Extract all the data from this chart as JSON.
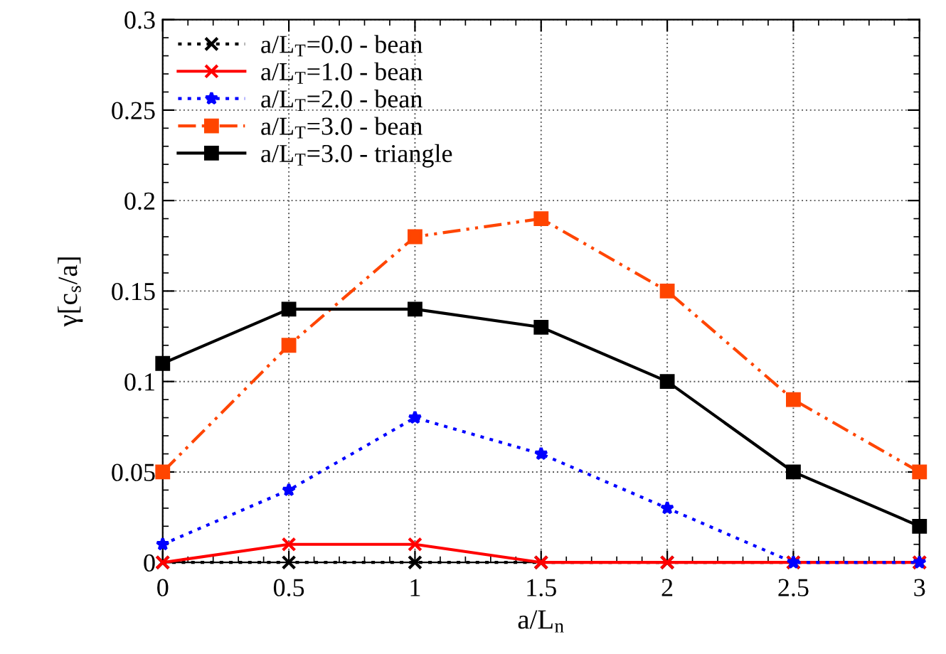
{
  "chart_data": {
    "type": "line",
    "xlabel": "a/L$_{n}$",
    "ylabel": "γ[c$_{s}$/a]",
    "x": [
      0,
      0.5,
      1,
      1.5,
      2,
      2.5,
      3
    ],
    "series": [
      {
        "name": "a/L$_{T}$=0.0 - bean",
        "color": "#000000",
        "values": [
          0,
          0,
          0,
          0,
          0,
          0,
          0
        ],
        "marker": "cross",
        "line_style": "dotted"
      },
      {
        "name": "a/L$_{T}$=1.0 - bean",
        "color": "#ff0000",
        "values": [
          0,
          0.01,
          0.01,
          0,
          0,
          0,
          0
        ],
        "marker": "cross",
        "line_style": "solid"
      },
      {
        "name": "a/L$_{T}$=2.0 - bean",
        "color": "#0000ff",
        "values": [
          0.01,
          0.04,
          0.08,
          0.06,
          0.03,
          0,
          0
        ],
        "marker": "star",
        "line_style": "dotted"
      },
      {
        "name": "a/L$_{T}$=3.0 - bean",
        "color": "#ff4500",
        "values": [
          0.05,
          0.12,
          0.18,
          0.19,
          0.15,
          0.09,
          0.05
        ],
        "marker": "square",
        "line_style": "dashed"
      },
      {
        "name": "a/L$_{T}$=3.0 - triangle",
        "color": "#000000",
        "values": [
          0.11,
          0.14,
          0.14,
          0.13,
          0.1,
          0.05,
          0.02
        ],
        "marker": "square",
        "line_style": "solid"
      }
    ],
    "xlim": [
      0,
      3
    ],
    "xticks": [
      0,
      0.5,
      1,
      1.5,
      2,
      2.5,
      3
    ],
    "ylim": [
      0,
      0.3
    ],
    "yticks": [
      0,
      0.05,
      0.1,
      0.15,
      0.2,
      0.25,
      0.3
    ],
    "grid": true,
    "legend": "top left"
  }
}
